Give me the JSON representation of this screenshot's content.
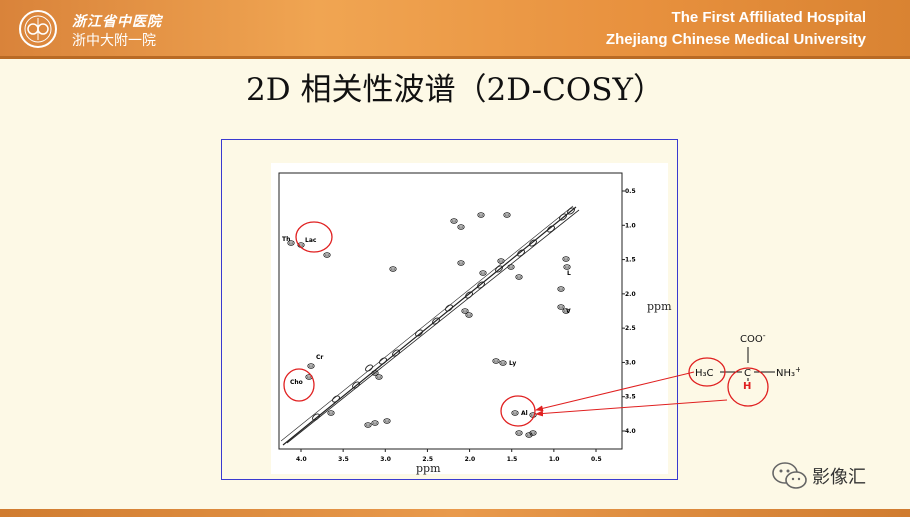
{
  "header": {
    "logo_cn_line1": "浙江省中医院",
    "logo_cn_line2": "浙中大附一院",
    "hospital_en_line1": "The First Affiliated Hospital",
    "hospital_en_line2": "Zhejiang Chinese Medical University"
  },
  "title": "2D 相关性波谱（2D-COSY）",
  "spectrum": {
    "x_ticks": [
      "4.0",
      "3.5",
      "3.0",
      "2.5",
      "2.0",
      "1.5",
      "1.0",
      "0.5"
    ],
    "y_ticks": [
      "0.5",
      "1.0",
      "1.5",
      "2.0",
      "2.5",
      "3.0",
      "3.5",
      "4.0"
    ],
    "x_axis_label": "ppm",
    "y_axis_label": "ppm",
    "peak_labels": {
      "thr": "Th",
      "lac": "Lac",
      "cr": "Cr",
      "cho": "Cho",
      "l": "L",
      "v": "V",
      "ly": "Ly",
      "al": "Al"
    }
  },
  "molecule": {
    "carboxylate": "COO",
    "carboxylate_charge": "-",
    "methyl": "H₃C",
    "alpha_carbon": "C",
    "alpha_h": "H",
    "amine": "NH₃",
    "amine_charge": "+"
  },
  "watermark": {
    "label": "影像汇"
  },
  "colors": {
    "banner": "#e8913e",
    "highlight": "#e02020",
    "frame": "#3a3ad0"
  }
}
